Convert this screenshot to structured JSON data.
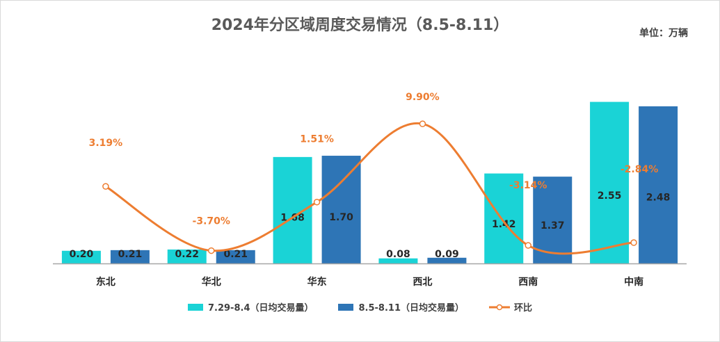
{
  "title": "2024年分区域周度交易情况（8.5-8.11）",
  "unit": "单位：万辆",
  "colors": {
    "series1": "#1ad3d6",
    "series2": "#2e75b6",
    "line": "#ed7d31",
    "axis": "#a6a6a6"
  },
  "chart_data": {
    "type": "bar",
    "categories": [
      "东北",
      "华北",
      "华东",
      "西北",
      "西南",
      "中南"
    ],
    "series": [
      {
        "name": "7.29-8.4（日均交易量）",
        "values": [
          0.2,
          0.22,
          1.68,
          0.08,
          1.42,
          2.55
        ],
        "labels": [
          "0.20",
          "0.22",
          "1.68",
          "0.08",
          "1.42",
          "2.55"
        ]
      },
      {
        "name": "8.5-8.11（日均交易量）",
        "values": [
          0.21,
          0.21,
          1.7,
          0.09,
          1.37,
          2.48
        ],
        "labels": [
          "0.21",
          "0.21",
          "1.70",
          "0.09",
          "1.37",
          "2.48"
        ]
      }
    ],
    "line_series": {
      "name": "环比",
      "values": [
        3.19,
        -3.7,
        1.51,
        9.9,
        -3.14,
        -2.84
      ],
      "labels": [
        "3.19%",
        "-3.70%",
        "1.51%",
        "9.90%",
        "-3.14%",
        "-2.84%"
      ]
    },
    "ylim": [
      0,
      2.6
    ],
    "line_ylim": [
      -5,
      12
    ],
    "legend_position": "bottom",
    "grid": false
  }
}
